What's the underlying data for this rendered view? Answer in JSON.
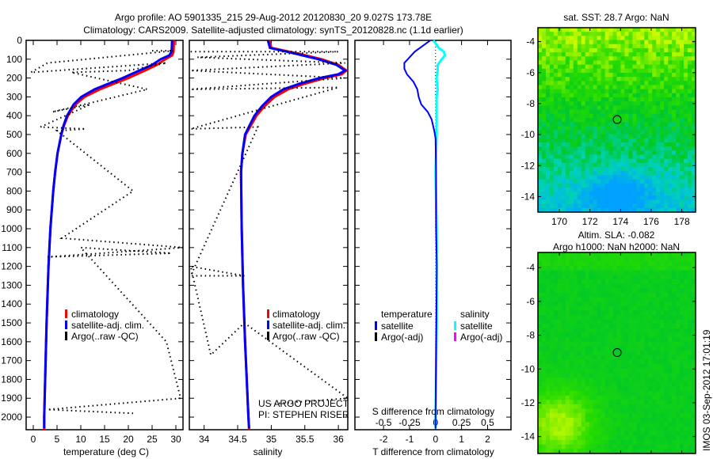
{
  "title": {
    "line1": "Argo profile: AO 5901335_215 29-Aug-2012 20120830_20 9.027S 173.78E",
    "line2": "Climatology: CARS2009. Satellite-adjusted climatology: synTS_20120828.nc (1.1d earlier)"
  },
  "side_label": "IMOS 03-Sep-2012 17:01:19",
  "colors": {
    "climatology": "#ff0000",
    "satellite": "#0000ff",
    "argo": "#000000",
    "sal_satellite": "#00ffff",
    "sal_argo": "#ff00ff"
  },
  "chart_data": [
    {
      "type": "line",
      "name": "temperature",
      "xlabel": "temperature (deg C)",
      "ylabel": "depth",
      "xlim": [
        -1.5,
        31.5
      ],
      "ylim": [
        2067,
        0
      ],
      "xticks": [
        0,
        5,
        10,
        15,
        20,
        25,
        30
      ],
      "yticks": [
        0,
        100,
        200,
        300,
        400,
        500,
        600,
        700,
        800,
        900,
        1000,
        1100,
        1200,
        1300,
        1400,
        1500,
        1600,
        1700,
        1800,
        1900,
        2000
      ],
      "legend": [
        "climatology",
        "satellite-adj. clim.",
        "Argo(..raw -QC)"
      ],
      "series": [
        {
          "name": "climatology",
          "depth": [
            0,
            60,
            80,
            100,
            130,
            160,
            200,
            230,
            260,
            300,
            340,
            400,
            450,
            500,
            600,
            700,
            800,
            1000,
            1200,
            1500,
            1800,
            2000,
            2067
          ],
          "values": [
            29.6,
            29.5,
            29.2,
            27.8,
            26,
            23.5,
            20,
            17,
            14,
            10.8,
            8.9,
            7.3,
            6.5,
            5.9,
            5.1,
            4.6,
            4.2,
            3.6,
            3.2,
            2.8,
            2.5,
            2.3,
            2.3
          ]
        },
        {
          "name": "satellite-adj. clim.",
          "depth": [
            0,
            60,
            80,
            100,
            130,
            160,
            200,
            230,
            260,
            300,
            340,
            400,
            450,
            500,
            600,
            700,
            800,
            1000,
            1200,
            1500,
            1800,
            2000,
            2060
          ],
          "values": [
            29.2,
            29.1,
            28.6,
            26.8,
            25,
            22.3,
            18.8,
            15.8,
            12.9,
            10.1,
            8.5,
            7.1,
            6.4,
            5.9,
            5.1,
            4.6,
            4.2,
            3.6,
            3.2,
            2.8,
            2.5,
            2.3,
            2.3
          ]
        },
        {
          "name": "Argo(..raw -QC)",
          "depth": [
            55,
            55,
            120,
            170,
            120,
            160,
            170,
            260,
            380,
            340,
            460,
            470,
            480,
            800,
            1050,
            1100,
            1150,
            1130,
            1100,
            1600,
            1900,
            1960,
            1980
          ],
          "values": [
            25,
            29.5,
            3,
            -0.5,
            28,
            20,
            8,
            24,
            4,
            12,
            1.5,
            11,
            5,
            21,
            6,
            31.5,
            3,
            29,
            10,
            28,
            31,
            3,
            21
          ]
        }
      ]
    },
    {
      "type": "line",
      "name": "salinity",
      "xlabel": "salinity",
      "xlim": [
        33.78,
        36.14
      ],
      "ylim": [
        2067,
        0
      ],
      "xticks": [
        34,
        34.5,
        35,
        35.5,
        36
      ],
      "legend": [
        "climatology",
        "satellite-adj. clim.",
        "Argo(..raw -QC)"
      ],
      "annotation": [
        "US ARGO PROJECT",
        "PI: STEPHEN RISER"
      ],
      "series": [
        {
          "name": "climatology",
          "depth": [
            0,
            40,
            70,
            100,
            130,
            160,
            180,
            200,
            230,
            260,
            300,
            350,
            400,
            500,
            600,
            700,
            1000,
            1300,
            1600,
            2000,
            2067
          ],
          "values": [
            34.97,
            35.0,
            35.4,
            35.75,
            36.0,
            36.12,
            36.05,
            35.8,
            35.5,
            35.25,
            35.05,
            34.9,
            34.78,
            34.62,
            34.57,
            34.55,
            34.56,
            34.58,
            34.61,
            34.66,
            34.67
          ]
        },
        {
          "name": "satellite-adj. clim.",
          "depth": [
            0,
            40,
            70,
            100,
            130,
            160,
            180,
            200,
            230,
            260,
            300,
            350,
            400,
            500,
            600,
            700,
            1000,
            1300,
            1600,
            2000,
            2060
          ],
          "values": [
            34.95,
            34.98,
            35.35,
            35.7,
            35.97,
            36.1,
            36.0,
            35.72,
            35.42,
            35.18,
            35.0,
            34.86,
            34.75,
            34.61,
            34.57,
            34.55,
            34.56,
            34.58,
            34.61,
            34.66,
            34.67
          ]
        },
        {
          "name": "Argo(..raw -QC)",
          "depth": [
            60,
            60,
            90,
            120,
            160,
            200,
            260,
            250,
            470,
            460,
            1250,
            1250,
            1200,
            1670,
            1500,
            1900,
            1930
          ],
          "values": [
            33.8,
            36.0,
            33.9,
            36.1,
            33.8,
            36.1,
            33.8,
            36.0,
            33.8,
            34.8,
            33.8,
            34.6,
            33.8,
            34.1,
            34.6,
            36.14,
            35.0
          ]
        }
      ]
    },
    {
      "type": "line",
      "name": "difference",
      "xlabel": "T difference from climatology",
      "xlabel2": "S difference from climatology",
      "xlim": [
        -3.1,
        2.9
      ],
      "xticks": [
        -2,
        -1,
        0,
        1,
        2
      ],
      "x2lim": [
        -0.775,
        0.725
      ],
      "x2ticks": [
        "-0.5",
        "-0.25",
        "0",
        "0.25",
        "0.5"
      ],
      "x2tickvalues": [
        -0.5,
        -0.25,
        0,
        0.25,
        0.5
      ],
      "legend_temperature": {
        "title": "temperature",
        "items": [
          "satellite",
          "Argo(-adj)"
        ]
      },
      "legend_salinity": {
        "title": "salinity",
        "items": [
          "satellite",
          "Argo(-adj)"
        ]
      },
      "series": [
        {
          "name": "T satellite",
          "depth": [
            0,
            30,
            60,
            90,
            120,
            150,
            180,
            220,
            260,
            300,
            340,
            380,
            420,
            480,
            520,
            700,
            1000,
            1200,
            1500,
            2000,
            2060
          ],
          "values": [
            -0.2,
            -0.5,
            -0.8,
            -1.0,
            -1.2,
            -1.2,
            -1.1,
            -0.85,
            -0.7,
            -0.65,
            -0.55,
            -0.3,
            -0.15,
            -0.05,
            0,
            0.02,
            0.02,
            0.05,
            0.03,
            0,
            0
          ]
        },
        {
          "name": "S satellite",
          "depth": [
            0,
            40,
            60,
            80,
            100,
            130,
            160,
            200,
            260,
            300,
            400,
            500,
            700,
            1000,
            1500,
            2000,
            2060
          ],
          "values": [
            -0.02,
            0.03,
            0.08,
            0.09,
            0.06,
            0.02,
            0.02,
            0.01,
            0.02,
            0.01,
            0.01,
            0.01,
            0.0,
            0.01,
            0.01,
            0.0,
            0.0
          ]
        }
      ]
    },
    {
      "type": "heatmap",
      "name": "sst_map",
      "title": "sat. SST: 28.7 Argo: NaN",
      "xlim": [
        168.6,
        178.9
      ],
      "ylim": [
        -15,
        -3.1
      ],
      "xticks": [
        170,
        172,
        174,
        176,
        178
      ],
      "yticks": [
        -4,
        -6,
        -8,
        -10,
        -12,
        -14
      ],
      "float_position": {
        "lon": 173.78,
        "lat": -9.027
      }
    },
    {
      "type": "heatmap",
      "name": "sla_map",
      "title": "Altim. SLA: -0.082",
      "subtitle": "Argo h1000: NaN h2000: NaN",
      "xlim": [
        168.6,
        178.9
      ],
      "ylim": [
        -15,
        -3.1
      ],
      "xticks": [
        170,
        172,
        174,
        176,
        178
      ],
      "yticks": [
        -4,
        -6,
        -8,
        -10,
        -12,
        -14
      ],
      "float_position": {
        "lon": 173.78,
        "lat": -9.027
      }
    }
  ]
}
